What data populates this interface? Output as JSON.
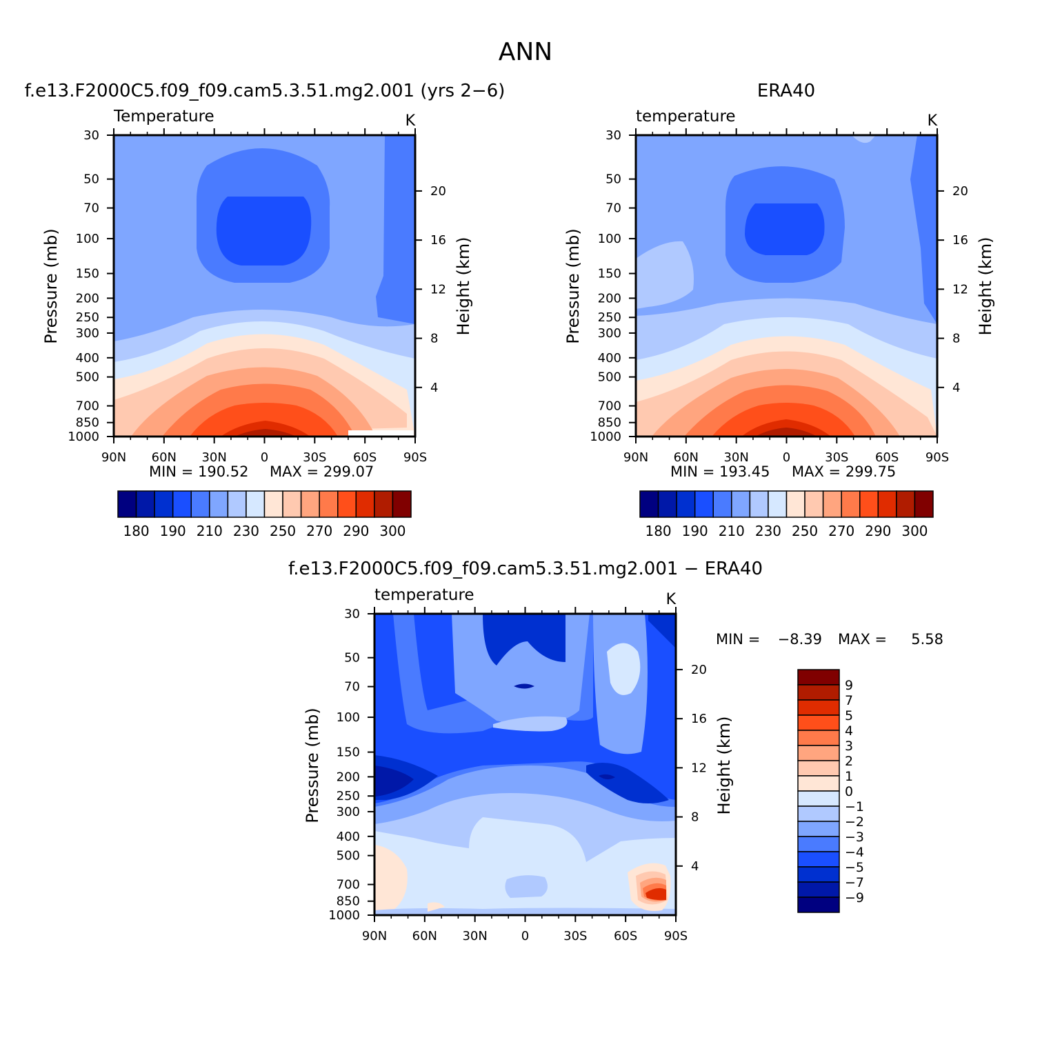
{
  "figure": {
    "title": "ANN"
  },
  "colors": {
    "abs_levels": [
      "#000080",
      "#0018a8",
      "#0030d0",
      "#1a4fff",
      "#4a7bff",
      "#7fa6ff",
      "#b0c9ff",
      "#d6e8ff",
      "#ffe6d6",
      "#ffc9b0",
      "#ffa57f",
      "#ff7a4a",
      "#ff4f1a",
      "#e02c00",
      "#b01c00",
      "#800000"
    ],
    "diff_levels": [
      "#000080",
      "#0018a8",
      "#0030d0",
      "#1a4fff",
      "#4a7bff",
      "#7fa6ff",
      "#b0c9ff",
      "#d6e8ff",
      "#ffe6d6",
      "#ffc9b0",
      "#ffa57f",
      "#ff7a4a",
      "#ff4f1a",
      "#e02c00",
      "#b01c00",
      "#800000"
    ]
  },
  "chart_data": [
    {
      "type": "heatmap",
      "panel_title": "f.e13.F2000C5.f09_f09.cam5.3.51.mg2.001 (yrs 2−6)",
      "variable": "Temperature",
      "units": "K",
      "ylabel": "Pressure (mb)",
      "ylabel_right": "Height (km)",
      "x_ticklabels": [
        "90N",
        "60N",
        "30N",
        "0",
        "30S",
        "60S",
        "90S"
      ],
      "y_ticklabels": [
        "30",
        "50",
        "70",
        "100",
        "150",
        "200",
        "250",
        "300",
        "400",
        "500",
        "700",
        "850",
        "1000"
      ],
      "y_ticks_right": [
        "20",
        "16",
        "12",
        "8",
        "4"
      ],
      "min_label": "MIN = 190.52",
      "max_label": "MAX = 299.07",
      "min": 190.52,
      "max": 299.07,
      "colorbar_ticklabels": [
        "180",
        "190",
        "210",
        "230",
        "250",
        "270",
        "290",
        "300"
      ]
    },
    {
      "type": "heatmap",
      "panel_title": "ERA40",
      "variable": "temperature",
      "units": "K",
      "ylabel": "Pressure (mb)",
      "ylabel_right": "Height (km)",
      "x_ticklabels": [
        "90N",
        "60N",
        "30N",
        "0",
        "30S",
        "60S",
        "90S"
      ],
      "y_ticklabels": [
        "30",
        "50",
        "70",
        "100",
        "150",
        "200",
        "250",
        "300",
        "400",
        "500",
        "700",
        "850",
        "1000"
      ],
      "y_ticks_right": [
        "20",
        "16",
        "12",
        "8",
        "4"
      ],
      "min_label": "MIN = 193.45",
      "max_label": "MAX = 299.75",
      "min": 193.45,
      "max": 299.75,
      "colorbar_ticklabels": [
        "180",
        "190",
        "210",
        "230",
        "250",
        "270",
        "290",
        "300"
      ]
    },
    {
      "type": "heatmap",
      "panel_title": "f.e13.F2000C5.f09_f09.cam5.3.51.mg2.001 − ERA40",
      "variable": "temperature",
      "units": "K",
      "ylabel": "Pressure (mb)",
      "ylabel_right": "Height (km)",
      "x_ticklabels": [
        "90N",
        "60N",
        "30N",
        "0",
        "30S",
        "60S",
        "90S"
      ],
      "y_ticklabels": [
        "30",
        "50",
        "70",
        "100",
        "150",
        "200",
        "250",
        "300",
        "400",
        "500",
        "700",
        "850",
        "1000"
      ],
      "y_ticks_right": [
        "20",
        "16",
        "12",
        "8",
        "4"
      ],
      "min_label": "MIN =",
      "min_value": "−8.39",
      "max_label": "MAX =",
      "max_value": "5.58",
      "min": -8.39,
      "max": 5.58,
      "colorbar_ticklabels": [
        "9",
        "7",
        "5",
        "4",
        "3",
        "2",
        "1",
        "0",
        "−1",
        "−2",
        "−3",
        "−4",
        "−5",
        "−7",
        "−9"
      ]
    }
  ]
}
